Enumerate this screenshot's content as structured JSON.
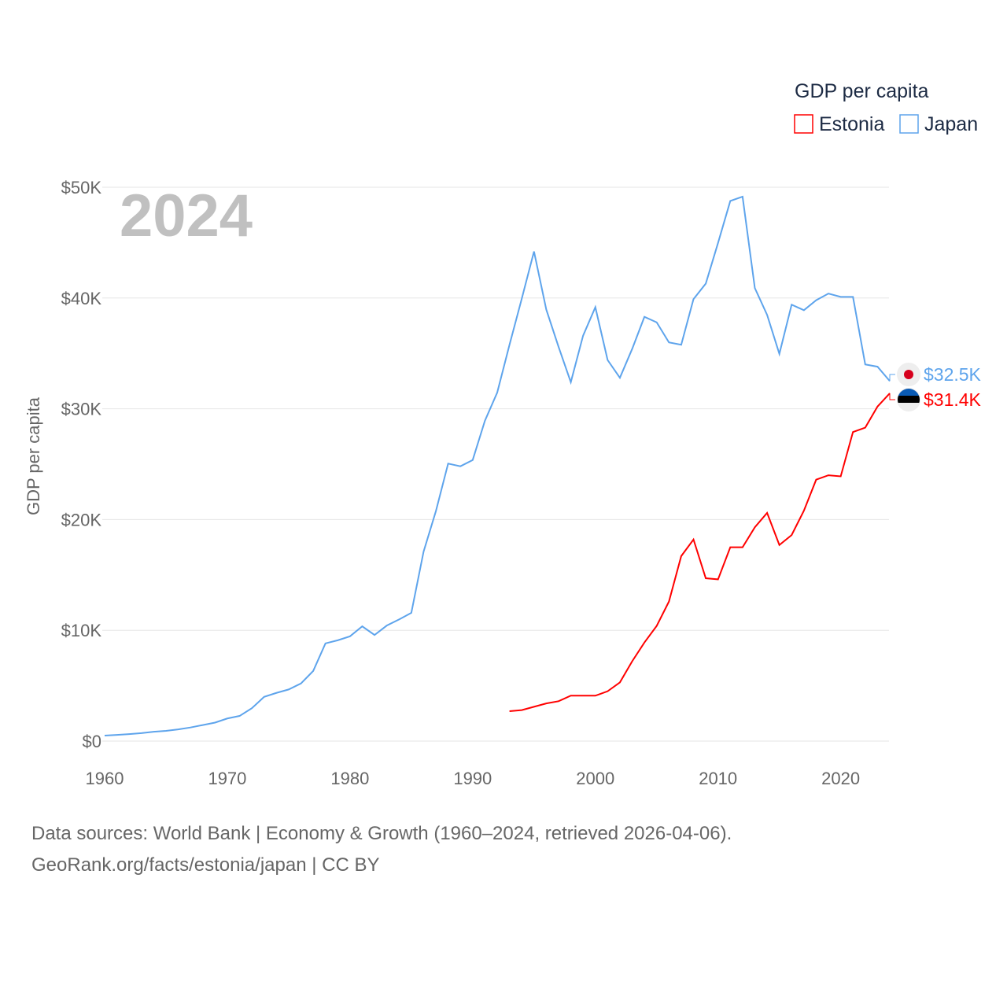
{
  "chart_data": {
    "type": "line",
    "title": "GDP per capita",
    "year_label": "2024",
    "ylabel": "GDP per capita",
    "xlabel": "",
    "xlim": [
      1960,
      2024
    ],
    "ylim": [
      0,
      50000
    ],
    "x_ticks": [
      1960,
      1970,
      1980,
      1990,
      2000,
      2010,
      2020
    ],
    "y_ticks": [
      0,
      10000,
      20000,
      30000,
      40000,
      50000
    ],
    "y_tick_labels": [
      "$0",
      "$10K",
      "$20K",
      "$30K",
      "$40K",
      "$50K"
    ],
    "grid": true,
    "legend_placement": "top-right",
    "series": [
      {
        "name": "Estonia",
        "color": "#ff0000",
        "end_label": "$31.4K",
        "flag": "estonia-flag",
        "x": [
          1993,
          1994,
          1995,
          1996,
          1997,
          1998,
          1999,
          2000,
          2001,
          2002,
          2003,
          2004,
          2005,
          2006,
          2007,
          2008,
          2009,
          2010,
          2011,
          2012,
          2013,
          2014,
          2015,
          2016,
          2017,
          2018,
          2019,
          2020,
          2021,
          2022,
          2023,
          2024
        ],
        "values": [
          2.7,
          2.8,
          3.1,
          3.4,
          3.6,
          4.1,
          4.1,
          4.1,
          4.5,
          5.3,
          7.2,
          8.9,
          10.4,
          12.6,
          16.7,
          18.2,
          14.7,
          14.6,
          17.5,
          17.5,
          19.3,
          20.6,
          17.7,
          18.6,
          20.8,
          23.6,
          24.0,
          23.9,
          27.9,
          28.3,
          30.2,
          31.4
        ]
      },
      {
        "name": "Japan",
        "color": "#5ea4ec",
        "end_label": "$32.5K",
        "flag": "japan-flag",
        "x": [
          1960,
          1961,
          1962,
          1963,
          1964,
          1965,
          1966,
          1967,
          1968,
          1969,
          1970,
          1971,
          1972,
          1973,
          1974,
          1975,
          1976,
          1977,
          1978,
          1979,
          1980,
          1981,
          1982,
          1983,
          1984,
          1985,
          1986,
          1987,
          1988,
          1989,
          1990,
          1991,
          1992,
          1993,
          1994,
          1995,
          1996,
          1997,
          1998,
          1999,
          2000,
          2001,
          2002,
          2003,
          2004,
          2005,
          2006,
          2007,
          2008,
          2009,
          2010,
          2011,
          2012,
          2013,
          2014,
          2015,
          2016,
          2017,
          2018,
          2019,
          2020,
          2021,
          2022,
          2023,
          2024
        ],
        "values": [
          0.5,
          0.56,
          0.63,
          0.72,
          0.84,
          0.92,
          1.06,
          1.23,
          1.45,
          1.67,
          2.04,
          2.27,
          2.97,
          3.99,
          4.35,
          4.66,
          5.2,
          6.33,
          8.82,
          9.1,
          9.46,
          10.36,
          9.58,
          10.43,
          10.98,
          11.58,
          17.11,
          20.75,
          25.05,
          24.81,
          25.37,
          28.93,
          31.46,
          35.77,
          39.93,
          44.2,
          38.96,
          35.6,
          32.4,
          36.6,
          39.17,
          34.4,
          32.8,
          35.4,
          38.3,
          37.8,
          35.99,
          35.78,
          39.9,
          41.3,
          44.97,
          48.76,
          49.15,
          40.9,
          38.48,
          34.96,
          39.4,
          38.9,
          39.8,
          40.4,
          40.1,
          40.1,
          34.0,
          33.8,
          32.5
        ]
      }
    ],
    "value_unit": "thousand USD"
  },
  "footer": {
    "line1": "Data sources: World Bank | Economy & Growth (1960–2024, retrieved 2026-04-06).",
    "line2": "GeoRank.org/facts/estonia/japan | CC BY"
  }
}
